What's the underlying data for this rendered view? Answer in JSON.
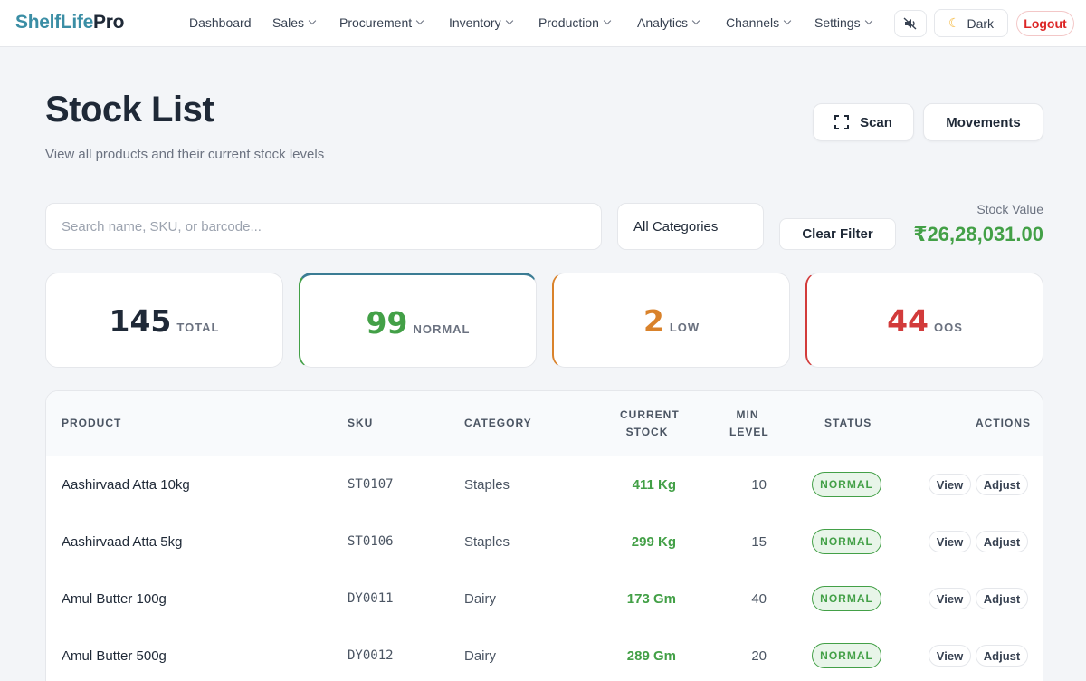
{
  "nav": {
    "brand_part1": "ShelfLife",
    "brand_part2": "Pro",
    "items": [
      {
        "label": "Dashboard",
        "has_dropdown": false
      },
      {
        "label": "Sales",
        "has_dropdown": true
      },
      {
        "label": "Procurement",
        "has_dropdown": true
      },
      {
        "label": "Inventory",
        "has_dropdown": true
      },
      {
        "label": "Production",
        "has_dropdown": true
      },
      {
        "label": "Analytics",
        "has_dropdown": true
      },
      {
        "label": "Channels",
        "has_dropdown": true
      },
      {
        "label": "Settings",
        "has_dropdown": true
      }
    ],
    "sound_icon": "speaker-icon",
    "dark_label": "Dark",
    "dark_icon": "moon-icon",
    "logout_label": "Logout"
  },
  "header": {
    "title": "Stock List",
    "subtitle": "View all products and their current stock levels",
    "scan_label": "Scan",
    "scan_icon": "scan-icon",
    "movements_label": "Movements"
  },
  "filters": {
    "search_placeholder": "Search name, SKU, or barcode...",
    "search_value": "",
    "category_value": "All Categories",
    "clear_label": "Clear Filter",
    "stock_value_label": "Stock Value",
    "stock_value": "₹26,28,031.00"
  },
  "stats": {
    "total": {
      "value": "145",
      "label": "TOTAL"
    },
    "normal": {
      "value": "99",
      "label": "NORMAL"
    },
    "low": {
      "value": "2",
      "label": "LOW"
    },
    "oos": {
      "value": "44",
      "label": "OOS"
    }
  },
  "table": {
    "headers": {
      "product": "PRODUCT",
      "sku": "SKU",
      "category": "CATEGORY",
      "current_stock_1": "CURRENT",
      "current_stock_2": "STOCK",
      "min_level_1": "MIN",
      "min_level_2": "LEVEL",
      "status": "STATUS",
      "actions": "ACTIONS"
    },
    "rows": [
      {
        "product": "Aashirvaad Atta 10kg",
        "sku": "ST0107",
        "category": "Staples",
        "stock": "411 Kg",
        "min": "10",
        "status": "NORMAL",
        "view": "View",
        "adjust": "Adjust"
      },
      {
        "product": "Aashirvaad Atta 5kg",
        "sku": "ST0106",
        "category": "Staples",
        "stock": "299 Kg",
        "min": "15",
        "status": "NORMAL",
        "view": "View",
        "adjust": "Adjust"
      },
      {
        "product": "Amul Butter 100g",
        "sku": "DY0011",
        "category": "Dairy",
        "stock": "173 Gm",
        "min": "40",
        "status": "NORMAL",
        "view": "View",
        "adjust": "Adjust"
      },
      {
        "product": "Amul Butter 500g",
        "sku": "DY0012",
        "category": "Dairy",
        "stock": "289 Gm",
        "min": "20",
        "status": "NORMAL",
        "view": "View",
        "adjust": "Adjust"
      }
    ]
  }
}
